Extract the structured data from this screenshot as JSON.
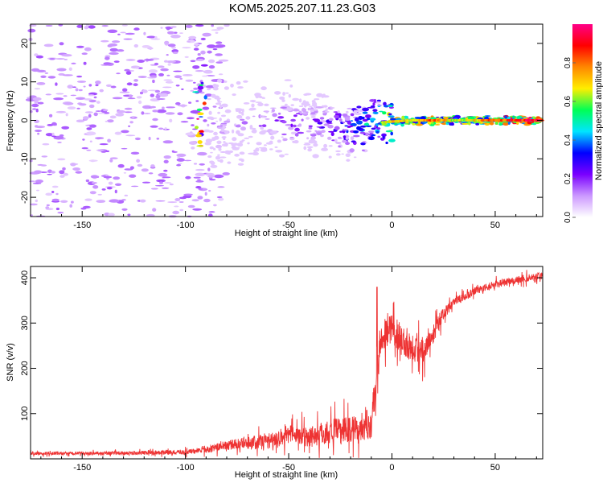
{
  "title": "KOM5.2025.207.11.23.G03",
  "chart_data": [
    {
      "type": "heatmap",
      "xlabel": "Height of straight line (km)",
      "ylabel": "Frequency (Hz)",
      "xlim": [
        -175,
        73
      ],
      "ylim": [
        -25,
        25
      ],
      "xticks": [
        -150,
        -100,
        -50,
        0,
        50
      ],
      "yticks": [
        -20,
        -10,
        0,
        10,
        20
      ],
      "colorbar": {
        "label": "Normalized spectral amplitude",
        "range": [
          0,
          1
        ],
        "ticks": [
          0.0,
          0.2,
          0.4,
          0.6,
          0.8
        ],
        "colormap": [
          "#ffffff",
          "#cc99ff",
          "#7a00ff",
          "#0000ff",
          "#00e5ff",
          "#00ff55",
          "#ffee00",
          "#ff8800",
          "#ff0000",
          "#ff0088"
        ]
      },
      "ridge": [
        {
          "x": -90,
          "f": -1.0,
          "amp": 0.12
        },
        {
          "x": -80,
          "f": -0.8,
          "amp": 0.15
        },
        {
          "x": -70,
          "f": -0.6,
          "amp": 0.18
        },
        {
          "x": -60,
          "f": -0.4,
          "amp": 0.22
        },
        {
          "x": -50,
          "f": -0.5,
          "amp": 0.28
        },
        {
          "x": -40,
          "f": -1.0,
          "amp": 0.25
        },
        {
          "x": -30,
          "f": -1.5,
          "amp": 0.3
        },
        {
          "x": -20,
          "f": -1.8,
          "amp": 0.4
        },
        {
          "x": -10,
          "f": -0.8,
          "amp": 0.5
        },
        {
          "x": 0,
          "f": -0.3,
          "amp": 0.75
        },
        {
          "x": 10,
          "f": 0.0,
          "amp": 0.7
        },
        {
          "x": 20,
          "f": 0.0,
          "amp": 0.85
        },
        {
          "x": 30,
          "f": 0.0,
          "amp": 0.65
        },
        {
          "x": 40,
          "f": 0.0,
          "amp": 0.7
        },
        {
          "x": 50,
          "f": 0.0,
          "amp": 0.85
        },
        {
          "x": 60,
          "f": 0.0,
          "amp": 0.9
        },
        {
          "x": 73,
          "f": 0.0,
          "amp": 0.95
        }
      ]
    },
    {
      "type": "line",
      "xlabel": "Height of straight line (km)",
      "ylabel": "SNR (v/v)",
      "xlim": [
        -175,
        73
      ],
      "ylim": [
        0,
        425
      ],
      "xticks": [
        -150,
        -100,
        -50,
        0,
        50
      ],
      "yticks": [
        100,
        200,
        300,
        400
      ],
      "color": "#ee3333",
      "series": [
        {
          "x": [
            -175,
            -150,
            -125,
            -100,
            -90,
            -80,
            -70,
            -60,
            -50,
            -40,
            -30,
            -20,
            -15,
            -10,
            -8,
            -6,
            -5,
            0,
            5,
            10,
            15,
            20,
            25,
            30,
            40,
            50,
            60,
            73
          ],
          "y": [
            12,
            12,
            13,
            15,
            20,
            30,
            35,
            40,
            55,
            50,
            60,
            65,
            70,
            80,
            150,
            260,
            270,
            290,
            260,
            250,
            240,
            280,
            320,
            345,
            370,
            385,
            395,
            405
          ],
          "spread": [
            5,
            5,
            6,
            8,
            10,
            15,
            20,
            25,
            30,
            35,
            40,
            45,
            45,
            50,
            80,
            60,
            50,
            45,
            50,
            50,
            45,
            35,
            20,
            15,
            12,
            12,
            12,
            12
          ]
        }
      ]
    }
  ]
}
